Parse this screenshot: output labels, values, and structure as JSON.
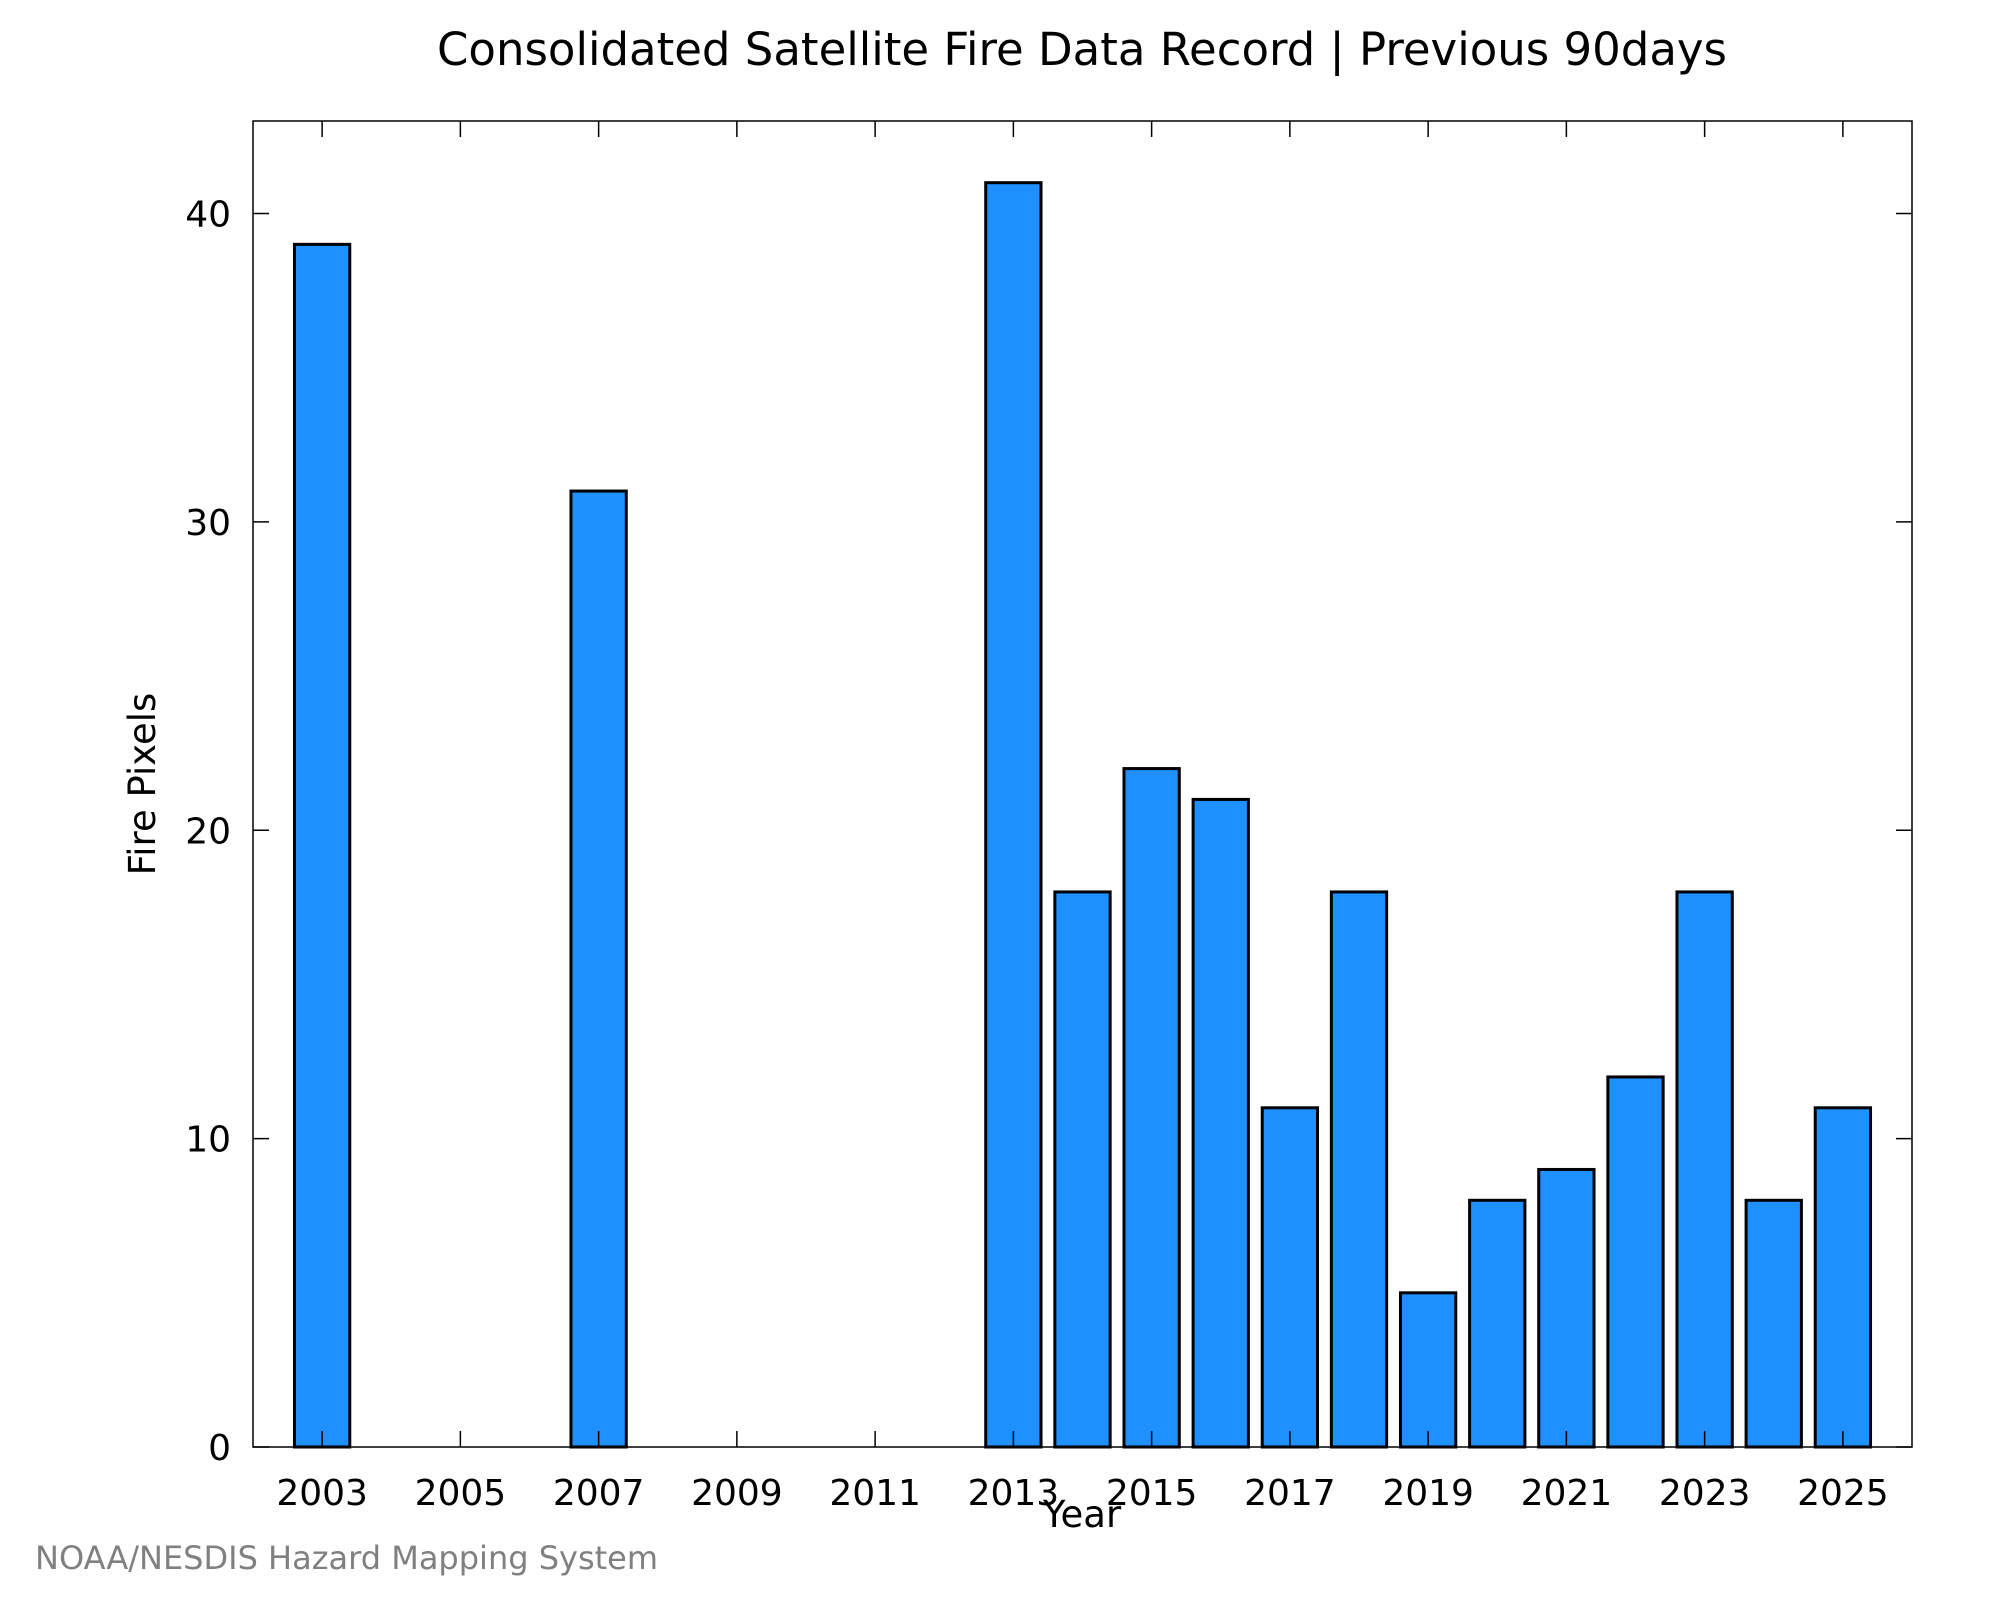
{
  "chart_data": {
    "type": "bar",
    "title": "Consolidated Satellite Fire Data Record | Previous 90days",
    "xlabel": "Year",
    "ylabel": "Fire Pixels",
    "categories": [
      "2003",
      "2004",
      "2005",
      "2006",
      "2007",
      "2008",
      "2009",
      "2010",
      "2011",
      "2012",
      "2013",
      "2014",
      "2015",
      "2016",
      "2017",
      "2018",
      "2019",
      "2020",
      "2021",
      "2022",
      "2023",
      "2024",
      "2025"
    ],
    "values": [
      39,
      0,
      0,
      0,
      31,
      0,
      0,
      0,
      0,
      0,
      41,
      18,
      22,
      21,
      11,
      18,
      5,
      8,
      9,
      12,
      18,
      8,
      11
    ],
    "x_tick_labels": [
      "2003",
      "2005",
      "2007",
      "2009",
      "2011",
      "2013",
      "2015",
      "2017",
      "2019",
      "2021",
      "2023",
      "2025"
    ],
    "y_tick_labels": [
      "0",
      "10",
      "20",
      "30",
      "40"
    ],
    "y_ticks": [
      0,
      10,
      20,
      30,
      40
    ],
    "xlim": [
      2002,
      2026
    ],
    "ylim": [
      0,
      43
    ],
    "grid": false,
    "bar_color": "#1e90ff",
    "edge_color": "#000000"
  },
  "footer": {
    "credit": "NOAA/NESDIS Hazard Mapping System"
  }
}
